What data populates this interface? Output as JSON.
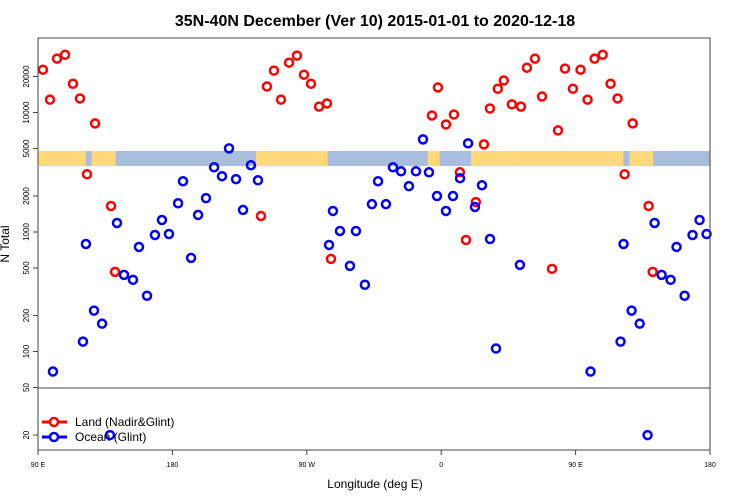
{
  "chart_data": {
    "type": "scatter",
    "title": "35N-40N December (Ver 10)   2015-01-01 to 2020-12-18",
    "xlabel": "Longitude (deg E)",
    "ylabel": "N Total",
    "x_range_deg_east": [
      90,
      540
    ],
    "x_tick_labels": [
      "90 E",
      "180",
      "90 W",
      "0",
      "90 E",
      "180"
    ],
    "y_scale": "log",
    "ylim": [
      15,
      42000
    ],
    "y_ticks": [
      20,
      50,
      100,
      200,
      500,
      1000,
      2000,
      5000,
      10000,
      20000
    ],
    "y_tick_labels": [
      "20",
      "50",
      "100",
      "200",
      "500",
      "1000",
      "2000",
      "5000",
      "10000",
      "20000"
    ],
    "reference_line_y": 50,
    "grid": false,
    "legend": {
      "placement": "bottom-left"
    },
    "map_strip_colors": {
      "land": "#ffd97a",
      "ocean": "#a8bedc"
    },
    "map_strip_land_lon": [
      [
        90,
        122
      ],
      [
        126,
        142
      ],
      [
        -124,
        -76
      ],
      [
        -9,
        -1
      ],
      [
        20,
        28
      ],
      [
        26,
        50
      ],
      [
        50,
        122
      ]
    ],
    "series": [
      {
        "name": "Land (Nadir&Glint)",
        "color": "#ff0000",
        "points": [
          [
            93.3,
            22800
          ],
          [
            98,
            12800
          ],
          [
            102.7,
            28200
          ],
          [
            108.1,
            30400
          ],
          [
            113.4,
            17400
          ],
          [
            118.1,
            13100
          ],
          [
            128.2,
            8100
          ],
          [
            122.8,
            3040
          ],
          [
            138.9,
            1650
          ],
          [
            141.6,
            464
          ],
          [
            -120.7,
            1360
          ],
          [
            -116.7,
            16500
          ],
          [
            -112,
            22400
          ],
          [
            -107.3,
            12800
          ],
          [
            -101.9,
            26100
          ],
          [
            -96.6,
            29900
          ],
          [
            -91.9,
            20700
          ],
          [
            -87.2,
            17400
          ],
          [
            -81.8,
            11200
          ],
          [
            -76.5,
            11900
          ],
          [
            -73.8,
            596
          ],
          [
            -2.2,
            16200
          ],
          [
            -6.2,
            9440
          ],
          [
            3.2,
            7940
          ],
          [
            8.5,
            9620
          ],
          [
            12.5,
            3160
          ],
          [
            16.6,
            857
          ],
          [
            23.2,
            1780
          ],
          [
            28.6,
            5410
          ],
          [
            32.6,
            10800
          ],
          [
            37.9,
            15800
          ],
          [
            41.9,
            18500
          ],
          [
            47.3,
            11700
          ],
          [
            53.4,
            11200
          ],
          [
            57.4,
            23700
          ],
          [
            62.8,
            28200
          ],
          [
            67.5,
            13600
          ],
          [
            74.2,
            492
          ],
          [
            78.2,
            7080
          ],
          [
            82.9,
            23300
          ],
          [
            88.2,
            15800
          ]
        ]
      },
      {
        "name": "Ocean (Glint)",
        "color": "#0000ff",
        "points": [
          [
            100,
            68
          ],
          [
            122.1,
            794
          ],
          [
            120.1,
            121
          ],
          [
            127.5,
            220
          ],
          [
            132.9,
            171
          ],
          [
            138.2,
            20
          ],
          [
            142.9,
            1190
          ],
          [
            147.6,
            438
          ],
          [
            153.6,
            398
          ],
          [
            157.6,
            750
          ],
          [
            163,
            293
          ],
          [
            168.3,
            944
          ],
          [
            173,
            1260
          ],
          [
            177.7,
            962
          ],
          [
            -176.2,
            1740
          ],
          [
            -172.9,
            2660
          ],
          [
            -167.5,
            607
          ],
          [
            -162.8,
            1390
          ],
          [
            -157.5,
            1920
          ],
          [
            -152.1,
            3480
          ],
          [
            -146.8,
            2930
          ],
          [
            -142.1,
            5010
          ],
          [
            -137.4,
            2770
          ],
          [
            -132.7,
            1530
          ],
          [
            -127.4,
            3620
          ],
          [
            -122.7,
            2710
          ],
          [
            -75.1,
            779
          ],
          [
            -72.5,
            1500
          ],
          [
            -67.8,
            1020
          ],
          [
            -61.1,
            521
          ],
          [
            -57.1,
            1020
          ],
          [
            -51.1,
            362
          ],
          [
            -46.4,
            1710
          ],
          [
            -42.3,
            2660
          ],
          [
            -37,
            1710
          ],
          [
            -32.3,
            3480
          ],
          [
            -26.9,
            3220
          ],
          [
            -21.6,
            2420
          ],
          [
            -16.9,
            3220
          ],
          [
            -12.2,
            5960
          ],
          [
            -8.2,
            3160
          ],
          [
            -2.8,
            2000
          ],
          [
            3.2,
            1500
          ],
          [
            7.9,
            2000
          ],
          [
            12.6,
            2820
          ],
          [
            18,
            5520
          ],
          [
            22.6,
            1620
          ],
          [
            27.3,
            2460
          ],
          [
            32.7,
            874
          ],
          [
            36.7,
            106
          ],
          [
            52.7,
            531
          ]
        ]
      }
    ]
  }
}
